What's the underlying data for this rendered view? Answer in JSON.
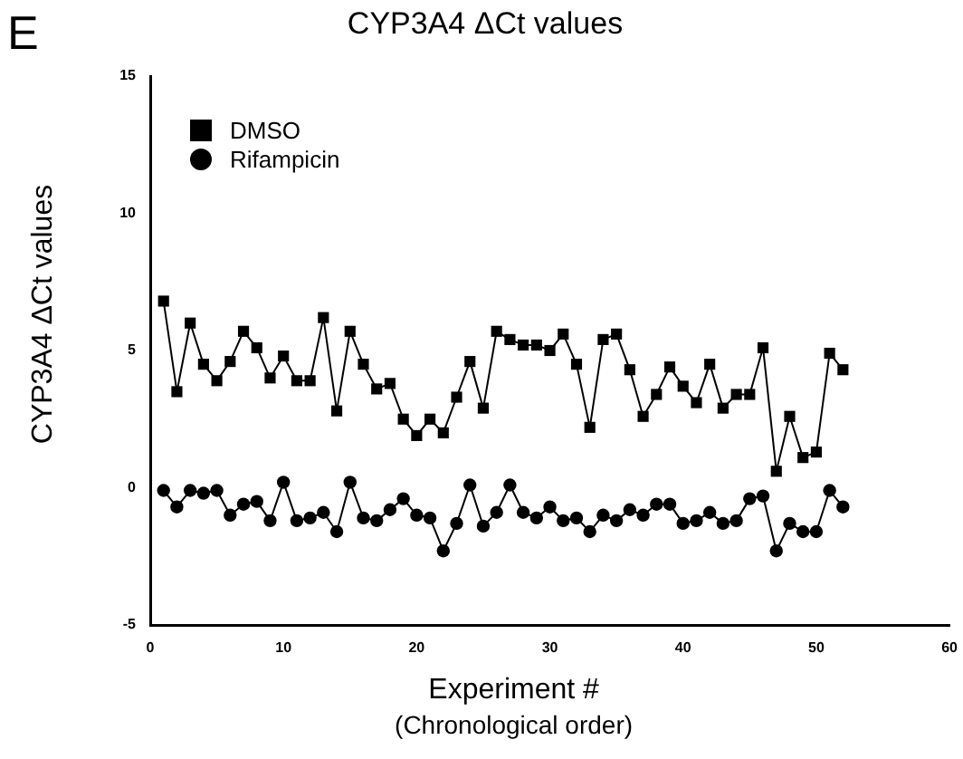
{
  "chart_data": {
    "type": "line",
    "title": "CYP3A4 ΔCt values",
    "xlabel": "Experiment #\n(Chronological order)",
    "ylabel": "CYP3A4 ΔCt values",
    "annotations": [
      "E"
    ],
    "x": [
      1,
      2,
      3,
      4,
      5,
      6,
      7,
      8,
      9,
      10,
      11,
      12,
      13,
      14,
      15,
      16,
      17,
      18,
      19,
      20,
      21,
      22,
      23,
      24,
      25,
      26,
      27,
      28,
      29,
      30,
      31,
      32,
      33,
      34,
      35,
      36,
      37,
      38,
      39,
      40,
      41,
      42,
      43,
      44,
      45,
      46,
      47,
      48,
      49,
      50,
      51,
      52
    ],
    "series": [
      {
        "name": "DMSO",
        "color": "#000000",
        "marker": "square",
        "values": [
          6.8,
          3.5,
          6.0,
          4.5,
          3.9,
          4.6,
          5.7,
          5.1,
          4.0,
          4.8,
          3.9,
          3.9,
          6.2,
          2.8,
          5.7,
          4.5,
          3.6,
          3.8,
          2.5,
          1.9,
          2.5,
          2.0,
          3.3,
          4.6,
          2.9,
          5.7,
          5.4,
          5.2,
          5.2,
          5.0,
          5.6,
          4.5,
          2.2,
          5.4,
          5.6,
          4.3,
          2.6,
          3.4,
          4.4,
          3.7,
          3.1,
          4.5,
          2.9,
          3.4,
          3.4,
          5.1,
          0.6,
          2.6,
          1.1,
          1.3,
          4.9,
          4.3
        ]
      },
      {
        "name": "Rifampicin",
        "color": "#000000",
        "marker": "circle",
        "values": [
          -0.1,
          -0.7,
          -0.1,
          -0.2,
          -0.1,
          -1.0,
          -0.6,
          -0.5,
          -1.2,
          0.2,
          -1.2,
          -1.1,
          -0.9,
          -1.6,
          0.2,
          -1.1,
          -1.2,
          -0.8,
          -0.4,
          -1.0,
          -1.1,
          -2.3,
          -1.3,
          0.1,
          -1.4,
          -0.9,
          0.1,
          -0.9,
          -1.1,
          -0.7,
          -1.2,
          -1.1,
          -1.6,
          -1.0,
          -1.2,
          -0.8,
          -1.0,
          -0.6,
          -0.6,
          -1.3,
          -1.2,
          -0.9,
          -1.3,
          -1.2,
          -0.4,
          -0.3,
          -2.3,
          -1.3,
          -1.6,
          -1.6,
          -0.1,
          -0.7
        ]
      }
    ],
    "xlim": [
      0,
      60
    ],
    "xticks": [
      0,
      10,
      20,
      30,
      40,
      50,
      60
    ],
    "ylim": [
      -5,
      15
    ],
    "yticks": [
      -5,
      0,
      5,
      10,
      15
    ],
    "grid": false,
    "legend": "top left",
    "line_style": "solid"
  }
}
